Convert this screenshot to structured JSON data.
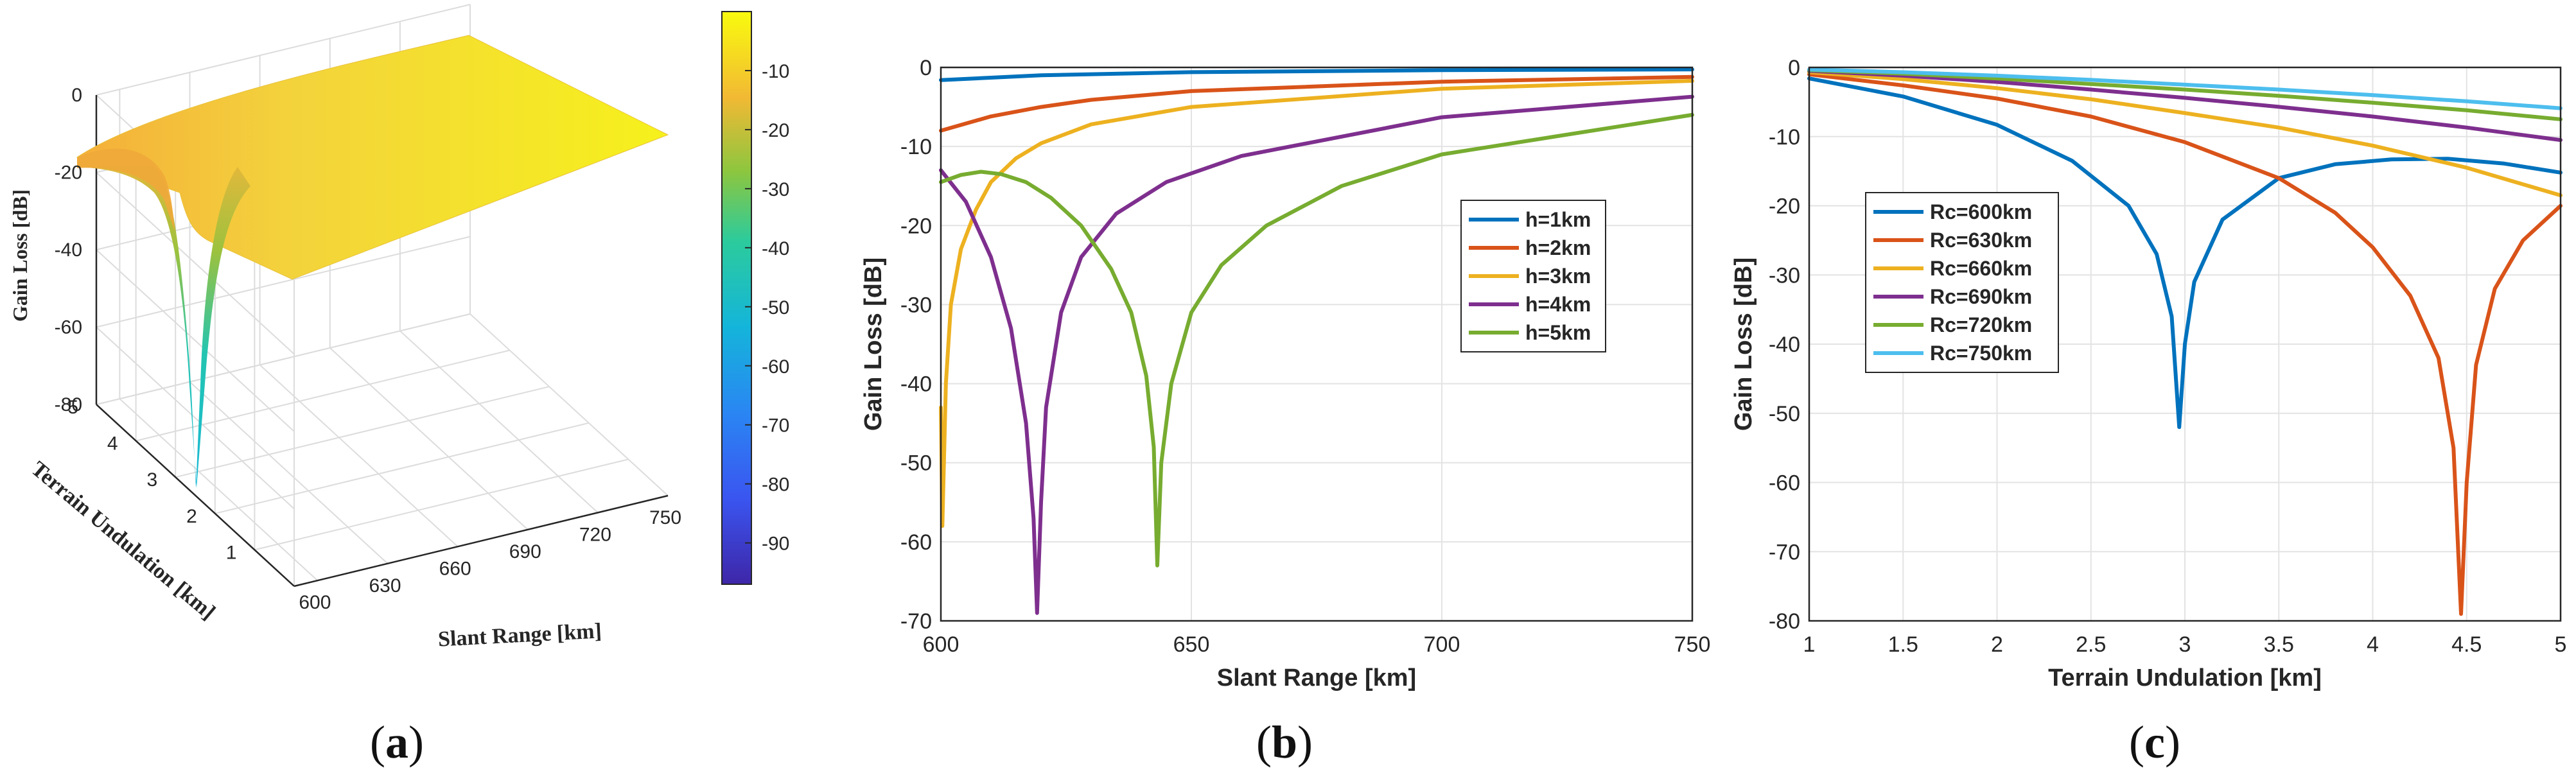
{
  "panel_labels": {
    "a": {
      "open": "(",
      "letter": "a",
      "close": ")"
    },
    "b": {
      "open": "(",
      "letter": "b",
      "close": ")"
    },
    "c": {
      "open": "(",
      "letter": "c",
      "close": ")"
    }
  },
  "colors": {
    "series": [
      "#0072BD",
      "#D95319",
      "#EDB120",
      "#7E2F8E",
      "#77AC30",
      "#4DBEEE"
    ],
    "grid": "#e3e3e3",
    "axis": "#262626",
    "surface_high": "#f5f01e"
  },
  "chart_data": [
    {
      "type": "surface",
      "panel": "a",
      "title": "",
      "xlabel": "Slant Range [km]",
      "ylabel": "Terrain Undulation [km]",
      "zlabel": "Gain Loss [dB]",
      "xlim": [
        590,
        750
      ],
      "ylim": [
        0,
        5
      ],
      "zlim": [
        -80,
        0
      ],
      "xticks": [
        "600",
        "630",
        "660",
        "690",
        "720",
        "750"
      ],
      "yticks": [
        "1",
        "2",
        "3",
        "4",
        "5"
      ],
      "zticks": [
        "0",
        "-20",
        "-40",
        "-60",
        "-80"
      ],
      "surface_description_values": {
        "x_at_h_km": [
          [
            1,
            600
          ],
          [
            2,
            600
          ],
          [
            3,
            600
          ],
          [
            4,
            619
          ],
          [
            5,
            643
          ]
        ],
        "z_range": [
          -97,
          -0.5
        ]
      },
      "colorbar": {
        "colormap": "parula",
        "range": [
          -97,
          0
        ],
        "ticks": [
          "-10",
          "-20",
          "-30",
          "-40",
          "-50",
          "-60",
          "-70",
          "-80",
          "-90"
        ]
      }
    },
    {
      "type": "line",
      "panel": "b",
      "title": "",
      "xlabel": "Slant Range [km]",
      "ylabel": "Gain Loss [dB]",
      "xlim": [
        600,
        750
      ],
      "ylim": [
        -70,
        0
      ],
      "xticks": [
        "600",
        "650",
        "700",
        "750"
      ],
      "yticks": [
        "0",
        "-10",
        "-20",
        "-30",
        "-40",
        "-50",
        "-60",
        "-70"
      ],
      "grid": true,
      "legend_position": "right",
      "series": [
        {
          "name": "h=1km",
          "x": [
            600,
            620,
            650,
            700,
            750
          ],
          "y": [
            -1.6,
            -1.0,
            -0.6,
            -0.35,
            -0.25
          ]
        },
        {
          "name": "h=2km",
          "x": [
            600,
            610,
            620,
            630,
            650,
            700,
            750
          ],
          "y": [
            -8.0,
            -6.2,
            -5.0,
            -4.1,
            -3.0,
            -1.8,
            -1.2
          ]
        },
        {
          "name": "h=3km",
          "x": [
            600,
            600.3,
            601,
            602,
            604,
            607,
            610,
            615,
            620,
            630,
            650,
            700,
            750
          ],
          "y": [
            -43,
            -58,
            -40,
            -30,
            -23,
            -18,
            -14.5,
            -11.5,
            -9.6,
            -7.2,
            -5.0,
            -2.7,
            -1.7
          ]
        },
        {
          "name": "h=4km",
          "x": [
            600,
            605,
            610,
            614,
            617,
            618.5,
            619.2,
            620,
            621,
            624,
            628,
            635,
            645,
            660,
            700,
            750
          ],
          "y": [
            -13,
            -17,
            -24,
            -33,
            -45,
            -57,
            -69,
            -55,
            -43,
            -31,
            -24,
            -18.5,
            -14.5,
            -11.2,
            -6.3,
            -3.7
          ]
        },
        {
          "name": "h=5km",
          "x": [
            600,
            604,
            608,
            612,
            617,
            622,
            628,
            634,
            638,
            641,
            642.5,
            643.2,
            644,
            646,
            650,
            656,
            665,
            680,
            700,
            750
          ],
          "y": [
            -14.5,
            -13.6,
            -13.2,
            -13.5,
            -14.5,
            -16.5,
            -20,
            -25.5,
            -31,
            -39,
            -48,
            -63,
            -50,
            -40,
            -31,
            -25,
            -20,
            -15,
            -11,
            -6
          ]
        }
      ]
    },
    {
      "type": "line",
      "panel": "c",
      "title": "",
      "xlabel": "Terrain Undulation [km]",
      "ylabel": "Gain Loss [dB]",
      "xlim": [
        1,
        5
      ],
      "ylim": [
        -80,
        0
      ],
      "xticks": [
        "1",
        "1.5",
        "2",
        "2.5",
        "3",
        "3.5",
        "4",
        "4.5",
        "5"
      ],
      "yticks": [
        "0",
        "-10",
        "-20",
        "-30",
        "-40",
        "-50",
        "-60",
        "-70",
        "-80"
      ],
      "grid": true,
      "legend_position": "left",
      "series": [
        {
          "name": "Rc=600km",
          "x": [
            1,
            1.5,
            2,
            2.4,
            2.7,
            2.85,
            2.93,
            2.97,
            3.0,
            3.05,
            3.2,
            3.5,
            3.8,
            4.1,
            4.4,
            4.7,
            5
          ],
          "y": [
            -1.6,
            -4.2,
            -8.3,
            -13.5,
            -20,
            -27,
            -36,
            -52,
            -40,
            -31,
            -22,
            -16,
            -14,
            -13.3,
            -13.2,
            -13.9,
            -15.2
          ]
        },
        {
          "name": "Rc=630km",
          "x": [
            1,
            1.5,
            2,
            2.5,
            3,
            3.5,
            3.8,
            4.0,
            4.2,
            4.35,
            4.43,
            4.47,
            4.5,
            4.55,
            4.65,
            4.8,
            5
          ],
          "y": [
            -1.0,
            -2.6,
            -4.5,
            -7.1,
            -10.8,
            -16.0,
            -21,
            -26,
            -33,
            -42,
            -55,
            -79,
            -60,
            -43,
            -32,
            -25,
            -20
          ]
        },
        {
          "name": "Rc=660km",
          "x": [
            1,
            1.5,
            2,
            2.5,
            3,
            3.5,
            4,
            4.5,
            5
          ],
          "y": [
            -0.7,
            -1.7,
            -3.0,
            -4.6,
            -6.6,
            -8.7,
            -11.3,
            -14.5,
            -18.5
          ]
        },
        {
          "name": "Rc=690km",
          "x": [
            1,
            1.5,
            2,
            2.5,
            3,
            3.5,
            4,
            4.5,
            5
          ],
          "y": [
            -0.5,
            -1.2,
            -2.1,
            -3.2,
            -4.4,
            -5.7,
            -7.1,
            -8.7,
            -10.5
          ]
        },
        {
          "name": "Rc=720km",
          "x": [
            1,
            1.5,
            2,
            2.5,
            3,
            3.5,
            4,
            4.5,
            5
          ],
          "y": [
            -0.4,
            -0.9,
            -1.6,
            -2.4,
            -3.2,
            -4.1,
            -5.1,
            -6.2,
            -7.5
          ]
        },
        {
          "name": "Rc=750km",
          "x": [
            1,
            1.5,
            2,
            2.5,
            3,
            3.5,
            4,
            4.5,
            5
          ],
          "y": [
            -0.3,
            -0.7,
            -1.2,
            -1.8,
            -2.5,
            -3.2,
            -4.0,
            -4.9,
            -5.9
          ]
        }
      ]
    }
  ]
}
